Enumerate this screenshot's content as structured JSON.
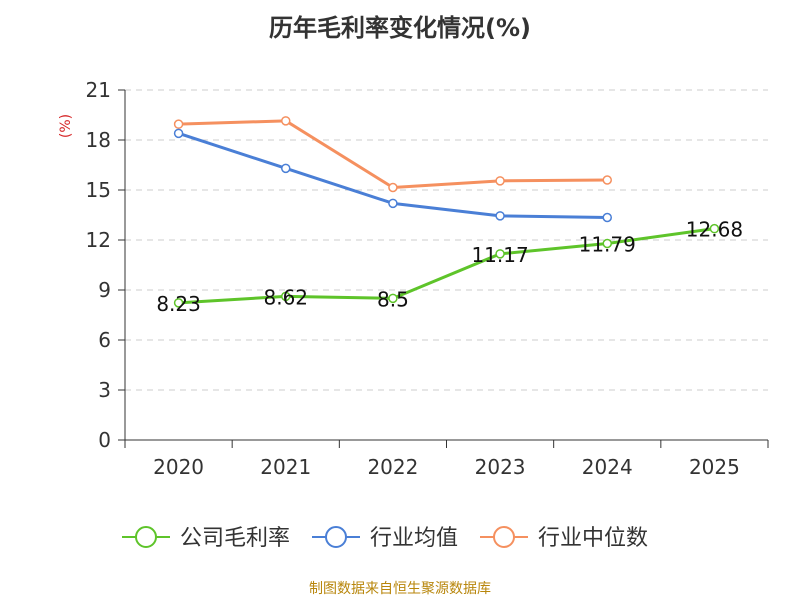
{
  "chart_data": {
    "type": "line",
    "title": "历年毛利率变化情况(%)",
    "ylabel": "(%)",
    "xlabel": "",
    "categories": [
      "2020",
      "2021",
      "2022",
      "2023",
      "2024",
      "2025"
    ],
    "ylim": [
      0,
      21
    ],
    "yticks": [
      0,
      3,
      6,
      9,
      12,
      15,
      18,
      21
    ],
    "grid": true,
    "legend_position": "bottom",
    "series": [
      {
        "name": "公司毛利率",
        "color": "#5ec42a",
        "values": [
          8.23,
          8.62,
          8.5,
          11.17,
          11.79,
          12.68
        ],
        "labels": [
          "8.23",
          "8.62",
          "8.5",
          "11.17",
          "11.79",
          "12.68"
        ]
      },
      {
        "name": "行业均值",
        "color": "#4a7fd6",
        "values": [
          18.4,
          16.3,
          14.2,
          13.45,
          13.35,
          null
        ]
      },
      {
        "name": "行业中位数",
        "color": "#f5905f",
        "values": [
          18.95,
          19.15,
          15.15,
          15.55,
          15.6,
          null
        ]
      }
    ]
  },
  "source": "制图数据来自恒生聚源数据库"
}
